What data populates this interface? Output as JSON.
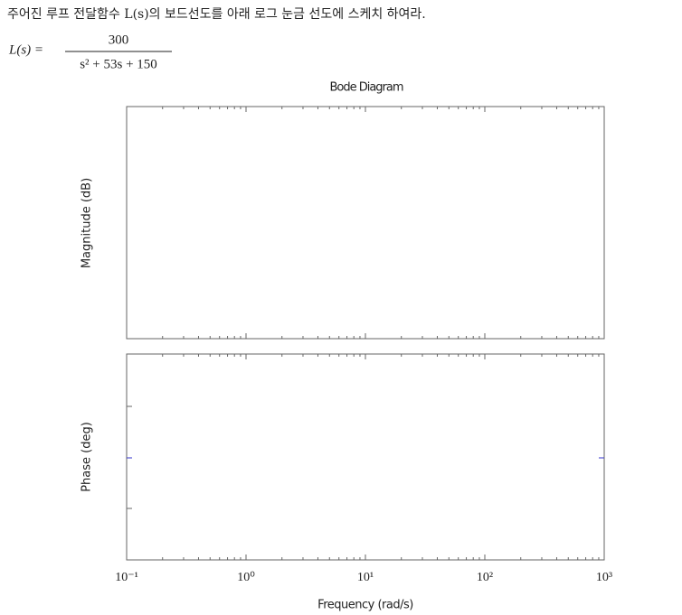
{
  "question": "주어진 루프 전달함수 L(s)의 보드선도를 아래 로그 눈금 선도에 스케치 하여라.",
  "formula": {
    "lhs": "L(s) =",
    "numerator": "300",
    "denominator": "s² + 53s + 150"
  },
  "plot": {
    "title": "Bode Diagram",
    "magnitude_ylabel": "Magnitude (dB)",
    "phase_ylabel": "Phase (deg)",
    "xlabel": "Frequency (rad/s)",
    "xscale": "log",
    "xlim": [
      0.1,
      1000
    ],
    "xticks": [
      {
        "value": 0.1,
        "label": "10⁻¹"
      },
      {
        "value": 1,
        "label": "10⁰"
      },
      {
        "value": 10,
        "label": "10¹"
      },
      {
        "value": 100,
        "label": "10²"
      },
      {
        "value": 1000,
        "label": "10³"
      }
    ],
    "minor_xticks": [
      0.2,
      0.3,
      0.4,
      0.5,
      0.6,
      0.7,
      0.8,
      0.9,
      2,
      3,
      4,
      5,
      6,
      7,
      8,
      9,
      20,
      30,
      40,
      50,
      60,
      70,
      80,
      90,
      200,
      300,
      400,
      500,
      600,
      700,
      800,
      900
    ]
  }
}
